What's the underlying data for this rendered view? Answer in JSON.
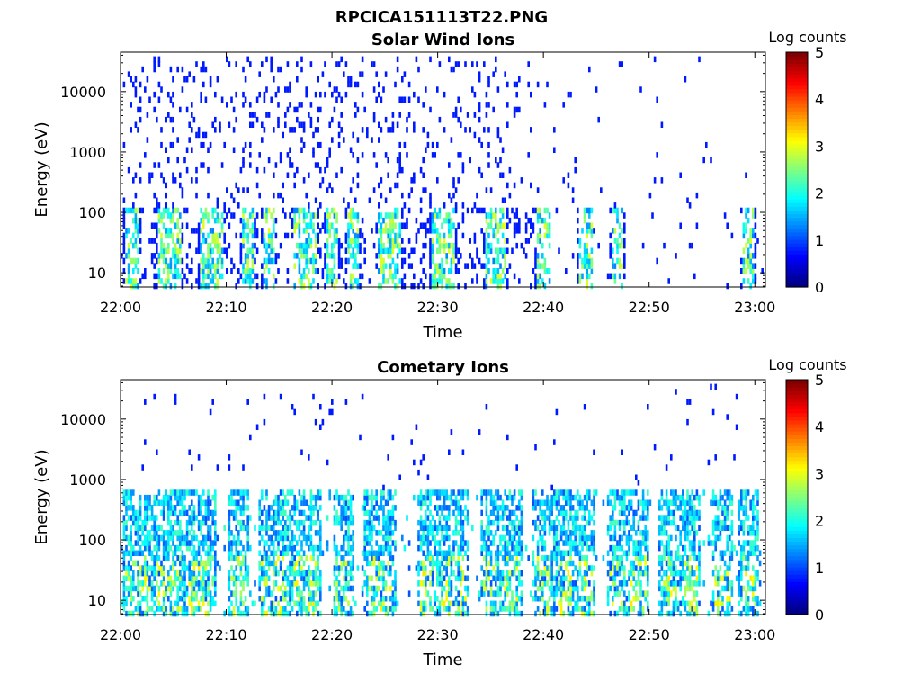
{
  "figure": {
    "title": "RPCICA151113T22.PNG"
  },
  "chart_data": [
    {
      "type": "heatmap",
      "title": "Solar Wind Ions",
      "xlabel": "Time",
      "ylabel": "Energy (eV)",
      "x_ticks": [
        "22:00",
        "22:10",
        "22:20",
        "22:30",
        "22:40",
        "22:50",
        "23:00"
      ],
      "x_range": [
        "22:00",
        "23:01"
      ],
      "y_scale": "log",
      "y_ticks": [
        "10",
        "100",
        "1000",
        "10000"
      ],
      "y_range": [
        5.8,
        45000
      ],
      "colorbar": {
        "label": "Log counts",
        "range": [
          0,
          5
        ],
        "ticks": [
          "0",
          "1",
          "2",
          "3",
          "4",
          "5"
        ],
        "colormap": "jet"
      },
      "grid": false
    },
    {
      "type": "heatmap",
      "title": "Cometary Ions",
      "xlabel": "Time",
      "ylabel": "Energy (eV)",
      "x_ticks": [
        "22:00",
        "22:10",
        "22:20",
        "22:30",
        "22:40",
        "22:50",
        "23:00"
      ],
      "x_range": [
        "22:00",
        "23:01"
      ],
      "y_scale": "log",
      "y_ticks": [
        "10",
        "100",
        "1000",
        "10000"
      ],
      "y_range": [
        5.8,
        45000
      ],
      "colorbar": {
        "label": "Log counts",
        "range": [
          0,
          5
        ],
        "ticks": [
          "0",
          "1",
          "2",
          "3",
          "4",
          "5"
        ],
        "colormap": "jet"
      },
      "grid": false
    }
  ]
}
